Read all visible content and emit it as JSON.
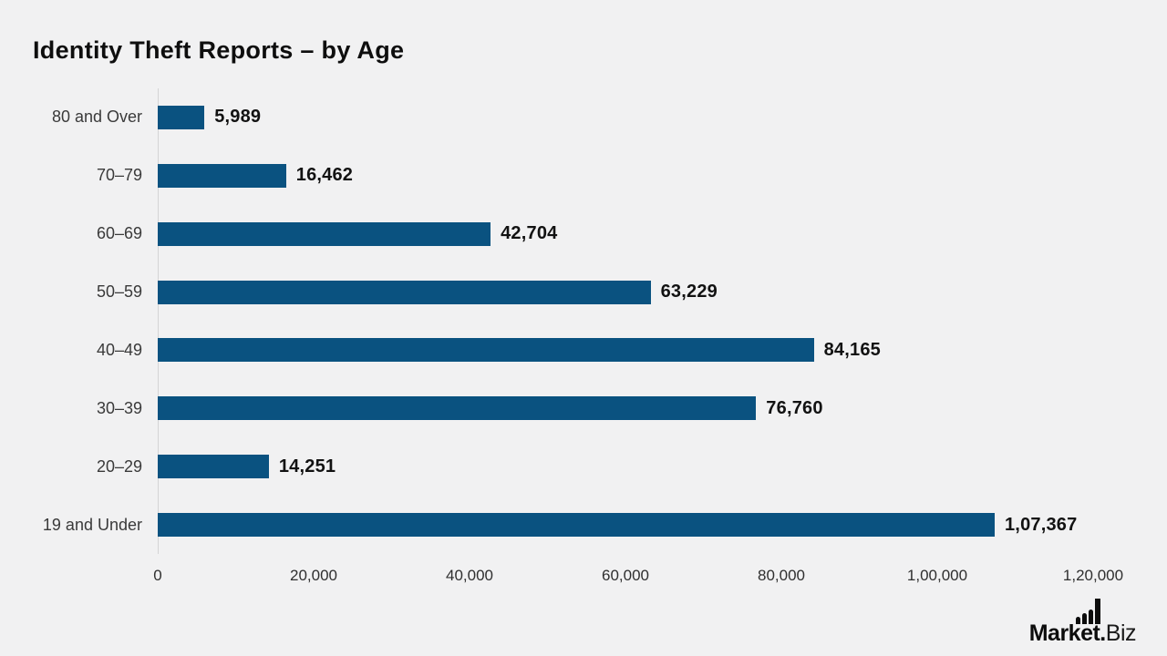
{
  "title": "Identity Theft Reports – by Age",
  "chart_data": {
    "type": "bar",
    "orientation": "horizontal",
    "title": "Identity Theft Reports – by Age",
    "categories": [
      "80 and Over",
      "70–79",
      "60–69",
      "50–59",
      "40–49",
      "30–39",
      "20–29",
      "19 and Under"
    ],
    "values": [
      5989,
      16462,
      42704,
      63229,
      84165,
      76760,
      14251,
      107367
    ],
    "value_labels": [
      "5,989",
      "16,462",
      "42,704",
      "63,229",
      "84,165",
      "76,760",
      "14,251",
      "1,07,367"
    ],
    "x_ticks": [
      "0",
      "20,000",
      "40,000",
      "60,000",
      "80,000",
      "1,00,000",
      "1,20,000"
    ],
    "x_tick_values": [
      0,
      20000,
      40000,
      60000,
      80000,
      100000,
      120000
    ],
    "xlim": [
      0,
      120000
    ],
    "xlabel": "",
    "ylabel": "",
    "grid": false,
    "legend": "none",
    "bar_color": "#0a5280",
    "background_color": "#f1f1f2"
  },
  "branding": {
    "logo_bold": "Market.",
    "logo_light": "Biz"
  }
}
